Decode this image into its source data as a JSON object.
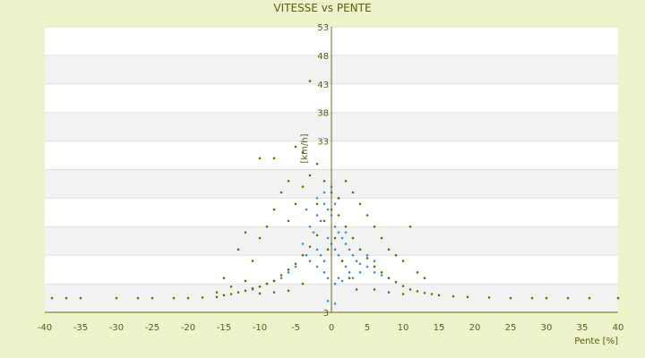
{
  "chart_data": {
    "type": "scatter",
    "title": "VITESSE vs PENTE",
    "xlabel": "Pente [%]",
    "ylabel": "[km/h]",
    "xlim": [
      -40,
      40
    ],
    "ylim": [
      3,
      53
    ],
    "xticks": [
      -40,
      -35,
      -30,
      -25,
      -20,
      -15,
      -10,
      -5,
      0,
      5,
      10,
      15,
      20,
      25,
      30,
      35,
      40
    ],
    "yticks": [
      3,
      8,
      13,
      18,
      23,
      28,
      33,
      38,
      43,
      48,
      53
    ],
    "ytick_labels": [
      "3",
      "",
      "",
      "",
      "",
      "",
      "33",
      "38",
      "43",
      "48",
      "53"
    ],
    "grid": "horizontal alternating bands",
    "legend": "none",
    "colors": {
      "background": "#edf2c9",
      "plot_white": "#ffffff",
      "plot_band": "#f2f2f2",
      "series_a": "#3a8fd9",
      "series_b": "#6b6b00",
      "axis": "#6b6b1a",
      "text": "#5a5a14"
    },
    "series": [
      {
        "points": [
          [
            -3.5,
            21
          ],
          [
            -3,
            18
          ],
          [
            -2.5,
            17
          ],
          [
            -2,
            20
          ],
          [
            -1.5,
            19
          ],
          [
            -1,
            22
          ],
          [
            -0.5,
            21
          ],
          [
            0,
            20
          ],
          [
            0.5,
            18
          ],
          [
            1,
            17
          ],
          [
            1.5,
            16
          ],
          [
            2,
            15
          ],
          [
            2.5,
            14
          ],
          [
            3,
            13
          ],
          [
            3.5,
            12
          ],
          [
            4,
            11.5
          ],
          [
            5,
            11
          ],
          [
            6,
            10
          ],
          [
            7,
            9.5
          ],
          [
            8,
            9
          ],
          [
            -2,
            14
          ],
          [
            -1.5,
            13
          ],
          [
            -1,
            12
          ],
          [
            -0.5,
            16
          ],
          [
            0,
            15
          ],
          [
            0.5,
            14
          ],
          [
            1,
            13
          ],
          [
            1.5,
            12
          ],
          [
            2,
            11
          ],
          [
            2.5,
            10
          ],
          [
            -4,
            15
          ],
          [
            -3.5,
            13
          ],
          [
            -3,
            12
          ],
          [
            -5,
            11
          ],
          [
            -6,
            10
          ],
          [
            -7,
            9
          ],
          [
            -8,
            8.5
          ],
          [
            -9,
            8
          ],
          [
            -10,
            7.5
          ],
          [
            -11,
            7
          ],
          [
            0,
            25
          ],
          [
            -1,
            24
          ],
          [
            1,
            23
          ],
          [
            -2,
            23
          ],
          [
            0.5,
            22
          ],
          [
            -0.5,
            9
          ],
          [
            0.5,
            8
          ],
          [
            1,
            9
          ],
          [
            1.5,
            8.5
          ],
          [
            3,
            9
          ],
          [
            4,
            10
          ],
          [
            -1,
            10
          ],
          [
            -2,
            11
          ],
          [
            2,
            17
          ],
          [
            3,
            16
          ],
          [
            4,
            14
          ],
          [
            5,
            13
          ],
          [
            6,
            12
          ],
          [
            -0.5,
            5
          ],
          [
            0.5,
            4.5
          ]
        ]
      },
      {
        "points": [
          [
            -39,
            5.5
          ],
          [
            -37,
            5.5
          ],
          [
            -35,
            5.5
          ],
          [
            -30,
            5.5
          ],
          [
            -27,
            5.5
          ],
          [
            -25,
            5.5
          ],
          [
            -22,
            5.5
          ],
          [
            -20,
            5.5
          ],
          [
            -18,
            5.6
          ],
          [
            -16,
            5.7
          ],
          [
            -15,
            6
          ],
          [
            -14,
            6.2
          ],
          [
            -13,
            6.5
          ],
          [
            -12,
            6.8
          ],
          [
            -11,
            7.2
          ],
          [
            -10,
            7.5
          ],
          [
            -9,
            8
          ],
          [
            -8,
            8.5
          ],
          [
            -7,
            9.5
          ],
          [
            -6,
            10.5
          ],
          [
            -5,
            11.5
          ],
          [
            -4,
            13
          ],
          [
            -3,
            14.5
          ],
          [
            -2,
            16.5
          ],
          [
            -1,
            19
          ],
          [
            0,
            21
          ],
          [
            1,
            20
          ],
          [
            2,
            18
          ],
          [
            3,
            16
          ],
          [
            4,
            14
          ],
          [
            5,
            12.5
          ],
          [
            6,
            11
          ],
          [
            7,
            10
          ],
          [
            8,
            9
          ],
          [
            9,
            8.3
          ],
          [
            10,
            7.6
          ],
          [
            11,
            7
          ],
          [
            12,
            6.7
          ],
          [
            13,
            6.4
          ],
          [
            14,
            6.2
          ],
          [
            15,
            6
          ],
          [
            17,
            5.8
          ],
          [
            19,
            5.7
          ],
          [
            22,
            5.6
          ],
          [
            25,
            5.5
          ],
          [
            28,
            5.5
          ],
          [
            30,
            5.5
          ],
          [
            33,
            5.5
          ],
          [
            36,
            5.5
          ],
          [
            40,
            5.5
          ],
          [
            -3,
            43.5
          ],
          [
            -10,
            30
          ],
          [
            -8,
            30
          ],
          [
            -5,
            32
          ],
          [
            -4,
            31
          ],
          [
            -2,
            29
          ],
          [
            -6,
            26
          ],
          [
            -7,
            24
          ],
          [
            -8,
            21
          ],
          [
            -9,
            18
          ],
          [
            -10,
            16
          ],
          [
            -12,
            17
          ],
          [
            -13,
            14
          ],
          [
            -11,
            12
          ],
          [
            -6,
            19
          ],
          [
            -5,
            22
          ],
          [
            -4,
            25
          ],
          [
            -3,
            27
          ],
          [
            2,
            26
          ],
          [
            3,
            24
          ],
          [
            4,
            22
          ],
          [
            5,
            20
          ],
          [
            6,
            18
          ],
          [
            7,
            16
          ],
          [
            8,
            14
          ],
          [
            9,
            13
          ],
          [
            10,
            12
          ],
          [
            11,
            18
          ],
          [
            12,
            10
          ],
          [
            13,
            9
          ],
          [
            -1,
            26
          ],
          [
            0,
            24
          ],
          [
            1,
            23
          ],
          [
            -2,
            22
          ],
          [
            0.5,
            16
          ],
          [
            -0.5,
            14
          ],
          [
            1.5,
            12
          ],
          [
            2.5,
            9
          ],
          [
            3.5,
            7
          ],
          [
            6,
            7
          ],
          [
            8,
            6.5
          ],
          [
            10,
            6.2
          ],
          [
            -6,
            6.8
          ],
          [
            -8,
            6.5
          ],
          [
            -10,
            6.3
          ],
          [
            -14,
            7.5
          ],
          [
            -15,
            9
          ],
          [
            -12,
            8.5
          ],
          [
            -16,
            6.5
          ],
          [
            -4,
            8
          ]
        ]
      }
    ]
  }
}
